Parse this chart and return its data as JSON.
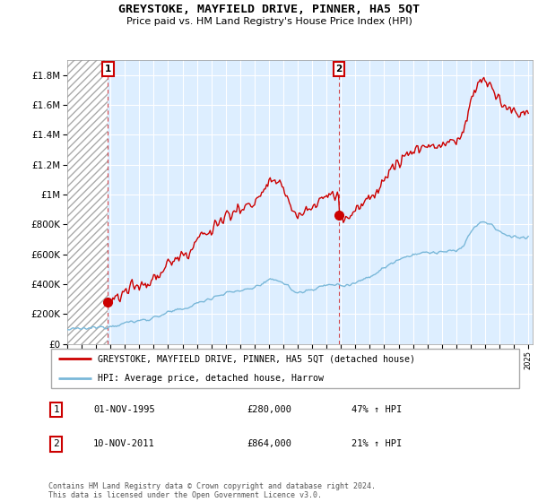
{
  "title": "GREYSTOKE, MAYFIELD DRIVE, PINNER, HA5 5QT",
  "subtitle": "Price paid vs. HM Land Registry's House Price Index (HPI)",
  "legend_line1": "GREYSTOKE, MAYFIELD DRIVE, PINNER, HA5 5QT (detached house)",
  "legend_line2": "HPI: Average price, detached house, Harrow",
  "annotation1_label": "1",
  "annotation1_date": "01-NOV-1995",
  "annotation1_price": "£280,000",
  "annotation1_hpi": "47% ↑ HPI",
  "annotation2_label": "2",
  "annotation2_date": "10-NOV-2011",
  "annotation2_price": "£864,000",
  "annotation2_hpi": "21% ↑ HPI",
  "footer": "Contains HM Land Registry data © Crown copyright and database right 2024.\nThis data is licensed under the Open Government Licence v3.0.",
  "ylim": [
    0,
    1900000
  ],
  "yticks": [
    0,
    200000,
    400000,
    600000,
    800000,
    1000000,
    1200000,
    1400000,
    1600000,
    1800000
  ],
  "ytick_labels": [
    "£0",
    "£200K",
    "£400K",
    "£600K",
    "£800K",
    "£1M",
    "£1.2M",
    "£1.4M",
    "£1.6M",
    "£1.8M"
  ],
  "hpi_color": "#7ab8d9",
  "price_color": "#cc0000",
  "vline_color": "#cc0000",
  "annotation_box_color": "#cc0000",
  "background_color": "#ffffff",
  "plot_bg_color": "#ddeeff",
  "grid_color": "#ffffff",
  "hatch_color": "#bbbbbb",
  "sale1_x": 1995.83,
  "sale1_y": 280000,
  "sale2_x": 2011.85,
  "sale2_y": 864000,
  "xlim_start": 1993.0,
  "xlim_end": 2025.3
}
